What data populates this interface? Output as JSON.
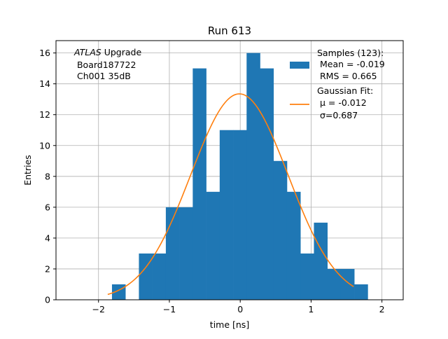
{
  "chart_data": {
    "type": "bar",
    "title": "Run 613",
    "xlabel": "time [ns]",
    "ylabel": "Entries",
    "xlim": [
      -2.6,
      2.3
    ],
    "ylim": [
      0,
      16.8
    ],
    "xticks": [
      -2,
      -1,
      0,
      1,
      2
    ],
    "xtick_labels": [
      "−2",
      "−1",
      "0",
      "1",
      "2"
    ],
    "yticks": [
      0,
      2,
      4,
      6,
      8,
      10,
      12,
      14,
      16
    ],
    "ytick_labels": [
      "0",
      "2",
      "4",
      "6",
      "8",
      "10",
      "12",
      "14",
      "16"
    ],
    "grid": true,
    "bin_edges": [
      -2.0,
      -1.81,
      -1.62,
      -1.43,
      -1.24,
      -1.05,
      -0.86,
      -0.67,
      -0.48,
      -0.29,
      -0.1,
      0.09,
      0.28,
      0.47,
      0.66,
      0.85,
      1.04,
      1.23,
      1.42,
      1.61,
      1.8
    ],
    "bin_edges_note": "",
    "series": [
      {
        "name": "Samples (123):",
        "kind": "histogram",
        "color": "#1f77b4",
        "x": [
          -1.965,
          -1.775,
          -1.585,
          -1.395,
          -1.205,
          -1.015,
          -0.825,
          -0.635,
          -0.445,
          -0.255,
          -0.065,
          0.125,
          0.315,
          0.505,
          0.695,
          0.885,
          1.075,
          1.265,
          1.455,
          1.645
        ],
        "values": [
          0,
          1,
          0,
          3,
          3,
          6,
          6,
          15,
          7,
          11,
          11,
          16,
          15,
          9,
          7,
          3,
          5,
          2,
          2,
          1
        ]
      },
      {
        "name": "Gaussian Fit:",
        "kind": "line",
        "color": "#ff7f0e",
        "mu": -0.012,
        "sigma": 0.687,
        "amplitude": 13.35,
        "x_range": [
          -1.87,
          1.6
        ]
      }
    ],
    "legend": {
      "position": "top-right",
      "entries": [
        {
          "label_lines": [
            "Samples (123):",
            " Mean = -0.019",
            " RMS = 0.665"
          ],
          "color": "#1f77b4",
          "marker": "patch"
        },
        {
          "label_lines": [
            "Gaussian Fit:",
            " μ = -0.012",
            " σ=0.687"
          ],
          "color": "#ff7f0e",
          "marker": "line"
        }
      ]
    },
    "annotation": {
      "position": "top-left",
      "line1_italic": "ATLAS",
      "line1_rest": " Upgrade",
      "line2": " Board187722",
      "line3": " Ch001 35dB"
    }
  }
}
